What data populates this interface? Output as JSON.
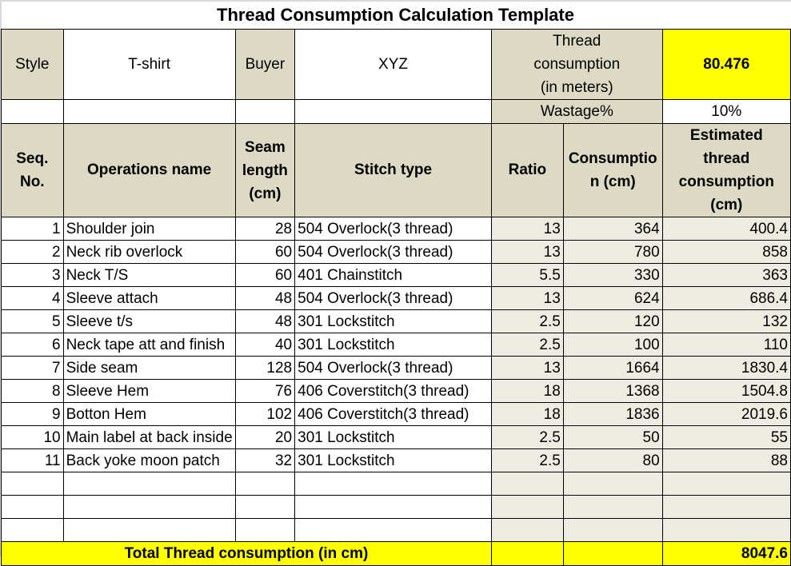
{
  "title": "Thread Consumption Calculation Template",
  "info": {
    "style_label": "Style",
    "style_value": "T-shirt",
    "buyer_label": "Buyer",
    "buyer_value": "XYZ",
    "thread_consumption_label": "Thread consumption (in meters)",
    "thread_consumption_value": "80.476",
    "wastage_label": "Wastage%",
    "wastage_value": "10%"
  },
  "columns": {
    "seq": "Seq. No.",
    "operation": "Operations name",
    "seam_length": "Seam length (cm)",
    "stitch_type": "Stitch type",
    "ratio": "Ratio",
    "consumption": "Consumptio n (cm)",
    "estimated": "Estimated thread consumption (cm)"
  },
  "rows": [
    {
      "seq": "1",
      "operation": "Shoulder join",
      "seam_length": "28",
      "stitch_type": "504 Overlock(3 thread)",
      "ratio": "13",
      "consumption": "364",
      "estimated": "400.4"
    },
    {
      "seq": "2",
      "operation": "Neck rib overlock",
      "seam_length": "60",
      "stitch_type": "504 Overlock(3 thread)",
      "ratio": "13",
      "consumption": "780",
      "estimated": "858"
    },
    {
      "seq": "3",
      "operation": "Neck T/S",
      "seam_length": "60",
      "stitch_type": "401 Chainstitch",
      "ratio": "5.5",
      "consumption": "330",
      "estimated": "363"
    },
    {
      "seq": "4",
      "operation": "Sleeve attach",
      "seam_length": "48",
      "stitch_type": "504 Overlock(3 thread)",
      "ratio": "13",
      "consumption": "624",
      "estimated": "686.4"
    },
    {
      "seq": "5",
      "operation": "Sleeve t/s",
      "seam_length": "48",
      "stitch_type": "301 Lockstitch",
      "ratio": "2.5",
      "consumption": "120",
      "estimated": "132"
    },
    {
      "seq": "6",
      "operation": "Neck tape att and finish",
      "seam_length": "40",
      "stitch_type": "301 Lockstitch",
      "ratio": "2.5",
      "consumption": "100",
      "estimated": "110"
    },
    {
      "seq": "7",
      "operation": "Side seam",
      "seam_length": "128",
      "stitch_type": "504 Overlock(3 thread)",
      "ratio": "13",
      "consumption": "1664",
      "estimated": "1830.4"
    },
    {
      "seq": "8",
      "operation": "Sleeve Hem",
      "seam_length": "76",
      "stitch_type": "406 Coverstitch(3 thread)",
      "ratio": "18",
      "consumption": "1368",
      "estimated": "1504.8"
    },
    {
      "seq": "9",
      "operation": "Botton Hem",
      "seam_length": "102",
      "stitch_type": "406 Coverstitch(3 thread)",
      "ratio": "18",
      "consumption": "1836",
      "estimated": "2019.6"
    },
    {
      "seq": "10",
      "operation": "Main label at back inside",
      "seam_length": "20",
      "stitch_type": "301 Lockstitch",
      "ratio": "2.5",
      "consumption": "50",
      "estimated": "55"
    },
    {
      "seq": "11",
      "operation": "Back yoke moon patch",
      "seam_length": "32",
      "stitch_type": "301 Lockstitch",
      "ratio": "2.5",
      "consumption": "80",
      "estimated": "88"
    }
  ],
  "total": {
    "label": "Total Thread consumption (in cm)",
    "value": "8047.6"
  },
  "colors": {
    "header_tan": "#ddd9c4",
    "computed_light": "#eeece1",
    "highlight_yellow": "#ffff00"
  }
}
